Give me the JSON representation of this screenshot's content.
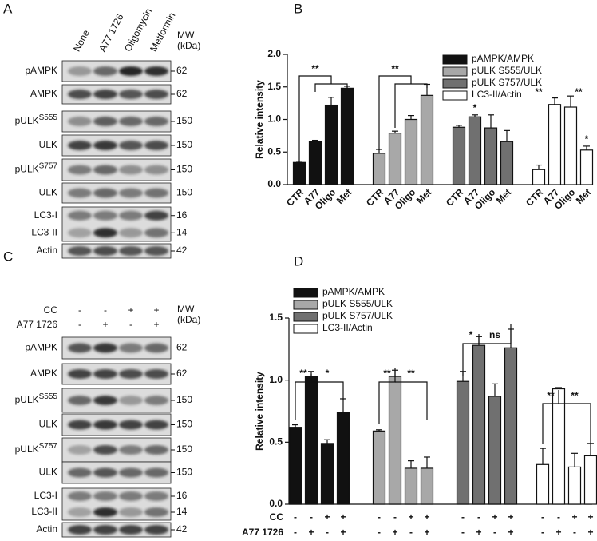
{
  "panel_labels": [
    "A",
    "B",
    "C",
    "D"
  ],
  "blots": [
    {
      "columns": [
        "None",
        "A77 1726",
        "Oligomycin",
        "Metformin"
      ],
      "mw_title": [
        "MW",
        "(kDa)"
      ],
      "rows": [
        {
          "labels": [
            "pAMPK"
          ],
          "mw": [
            62
          ]
        },
        {
          "labels": [
            "AMPK"
          ],
          "mw": [
            62
          ]
        },
        {
          "labels": [
            "pULK"
          ],
          "sup": "S555",
          "mw": [
            150
          ]
        },
        {
          "labels": [
            "ULK"
          ],
          "mw": [
            150
          ]
        },
        {
          "labels": [
            "pULK"
          ],
          "sup": "S757",
          "mw": [
            150
          ]
        },
        {
          "labels": [
            "ULK"
          ],
          "mw": [
            150
          ]
        },
        {
          "labels": [
            "LC3-I",
            "LC3-II"
          ],
          "mw": [
            16,
            14
          ]
        },
        {
          "labels": [
            "Actin"
          ],
          "mw": [
            42
          ]
        }
      ]
    },
    {
      "conditions": [
        {
          "label": "CC",
          "values": [
            "-",
            "-",
            "+",
            "+"
          ]
        },
        {
          "label": "A77 1726",
          "values": [
            "-",
            "+",
            "-",
            "+"
          ]
        }
      ],
      "mw_title": [
        "MW",
        "(kDa)"
      ],
      "rows": [
        {
          "labels": [
            "pAMPK"
          ],
          "mw": [
            62
          ]
        },
        {
          "labels": [
            "AMPK"
          ],
          "mw": [
            62
          ]
        },
        {
          "labels": [
            "pULK"
          ],
          "sup": "S555",
          "mw": [
            150
          ]
        },
        {
          "labels": [
            "ULK"
          ],
          "mw": [
            150
          ]
        },
        {
          "labels": [
            "pULK"
          ],
          "sup": "S757",
          "mw": [
            150
          ]
        },
        {
          "labels": [
            "ULK"
          ],
          "mw": [
            150
          ]
        },
        {
          "labels": [
            "LC3-I",
            "LC3-II"
          ],
          "mw": [
            16,
            14
          ]
        },
        {
          "labels": [
            "Actin"
          ],
          "mw": [
            42
          ]
        }
      ]
    }
  ],
  "chart_data": [
    {
      "type": "bar",
      "y_label": "Relative intensity",
      "categories": [
        "CTR",
        "A77",
        "Oligo",
        "Met"
      ],
      "series": [
        {
          "name": "pAMPK/AMPK",
          "color": "#111111",
          "values": [
            0.34,
            0.66,
            1.22,
            1.48
          ],
          "errors": [
            0.02,
            0.02,
            0.12,
            0.03
          ]
        },
        {
          "name": "pULK S555/ULK",
          "color": "#a8a8a8",
          "values": [
            0.48,
            0.79,
            1.0,
            1.37
          ],
          "errors": [
            0.06,
            0.03,
            0.06,
            0.17
          ]
        },
        {
          "name": "pULK S757/ULK",
          "color": "#707070",
          "values": [
            0.88,
            1.04,
            0.87,
            0.66
          ],
          "errors": [
            0.03,
            0.03,
            0.2,
            0.17
          ]
        },
        {
          "name": "LC3-II/Actin",
          "color": "#ffffff",
          "values": [
            0.23,
            1.23,
            1.19,
            0.53
          ],
          "errors": [
            0.07,
            0.1,
            0.17,
            0.06
          ]
        }
      ],
      "ylim": [
        0,
        2
      ],
      "yticks": [
        {
          "value": 0,
          "label": "0.0"
        },
        0.5,
        {
          "value": 1,
          "label": "1.0"
        },
        1.5,
        {
          "value": 2,
          "label": "2.0"
        }
      ],
      "legend": "upper right",
      "annotations": [
        "**",
        "**",
        "*",
        "**",
        "**",
        "*"
      ]
    },
    {
      "type": "bar",
      "y_label": "Relative intensity",
      "categories": [
        [
          "-",
          "-"
        ],
        [
          "-",
          "+"
        ],
        [
          "+",
          "-"
        ],
        [
          "+",
          "+"
        ]
      ],
      "category_rows": [
        "CC",
        "A77 1726"
      ],
      "series": [
        {
          "name": "pAMPK/AMPK",
          "color": "#111111",
          "values": [
            0.62,
            1.03,
            0.49,
            0.74
          ],
          "errors": [
            0.02,
            0.04,
            0.03,
            0.11
          ]
        },
        {
          "name": "pULK S555/ULK",
          "color": "#a8a8a8",
          "values": [
            0.59,
            1.03,
            0.29,
            0.29
          ],
          "errors": [
            0.01,
            0.05,
            0.06,
            0.09
          ]
        },
        {
          "name": "pULK S757/ULK",
          "color": "#707070",
          "values": [
            0.99,
            1.28,
            0.87,
            1.26
          ],
          "errors": [
            0.08,
            0.07,
            0.1,
            0.15
          ]
        },
        {
          "name": "LC3-II/Actin",
          "color": "#ffffff",
          "values": [
            0.32,
            0.93,
            0.3,
            0.39
          ],
          "errors": [
            0.13,
            0.01,
            0.11,
            0.1
          ]
        }
      ],
      "ylim": [
        0,
        1.5
      ],
      "yticks": [
        {
          "value": 0,
          "label": "0.0"
        },
        0.5,
        {
          "value": 1,
          "label": "1.0"
        },
        1.5
      ],
      "legend": "upper left",
      "annotations": [
        "**",
        "*",
        "**",
        "**",
        "*",
        "ns",
        "**",
        "**"
      ]
    }
  ]
}
